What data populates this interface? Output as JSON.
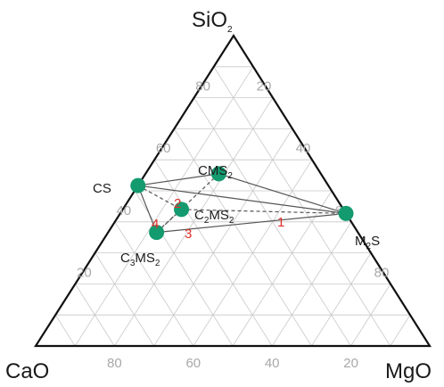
{
  "vertices": {
    "top": "SiO2",
    "left": "CaO",
    "right": "MgO"
  },
  "grid_step": 10,
  "ticks": {
    "left_side": [
      "20",
      "40",
      "60",
      "80"
    ],
    "right_side": [
      "20",
      "40",
      "60",
      "80"
    ],
    "bottom": [
      "20",
      "40",
      "60",
      "80"
    ]
  },
  "compositions": [
    {
      "id": "CS",
      "sio2": 51.7,
      "cao": 48.3,
      "mgo": 0.0,
      "label": "CS",
      "sub": ""
    },
    {
      "id": "CMS2",
      "sio2": 55.5,
      "cao": 25.9,
      "mgo": 18.6,
      "label": "CMS",
      "sub": "2"
    },
    {
      "id": "C2MS2",
      "sio2": 44.0,
      "cao": 41.1,
      "mgo": 14.9,
      "label": "C",
      "sub": "2",
      "label2": "MS",
      "sub2": "2"
    },
    {
      "id": "C3MS2",
      "sio2": 36.6,
      "cao": 51.1,
      "mgo": 12.3,
      "label": "C",
      "sub": "3",
      "label2": "MS",
      "sub2": "2"
    },
    {
      "id": "M2S",
      "sio2": 42.7,
      "cao": 0.0,
      "mgo": 57.3,
      "label": "M",
      "sub": "2",
      "label2": "S"
    }
  ],
  "tie_lines": {
    "solid": [
      [
        "CS",
        "CMS2"
      ],
      [
        "CMS2",
        "M2S"
      ],
      [
        "CS",
        "C3MS2"
      ],
      [
        "C3MS2",
        "M2S"
      ],
      [
        "CS",
        "M2S"
      ]
    ],
    "dashed": [
      [
        "CMS2",
        "C3MS2"
      ],
      [
        "C2MS2",
        "M2S"
      ],
      [
        "CS",
        "C2MS2"
      ],
      [
        "C2MS2",
        "C3MS2"
      ]
    ]
  },
  "region_numbers": [
    "1",
    "2",
    "3",
    "4"
  ],
  "colors": {
    "point": "#139a6f",
    "numbers": "#e0302a",
    "axis": "#111111",
    "grid": "#c8c8c8",
    "ticks": "#a8a8a8"
  }
}
